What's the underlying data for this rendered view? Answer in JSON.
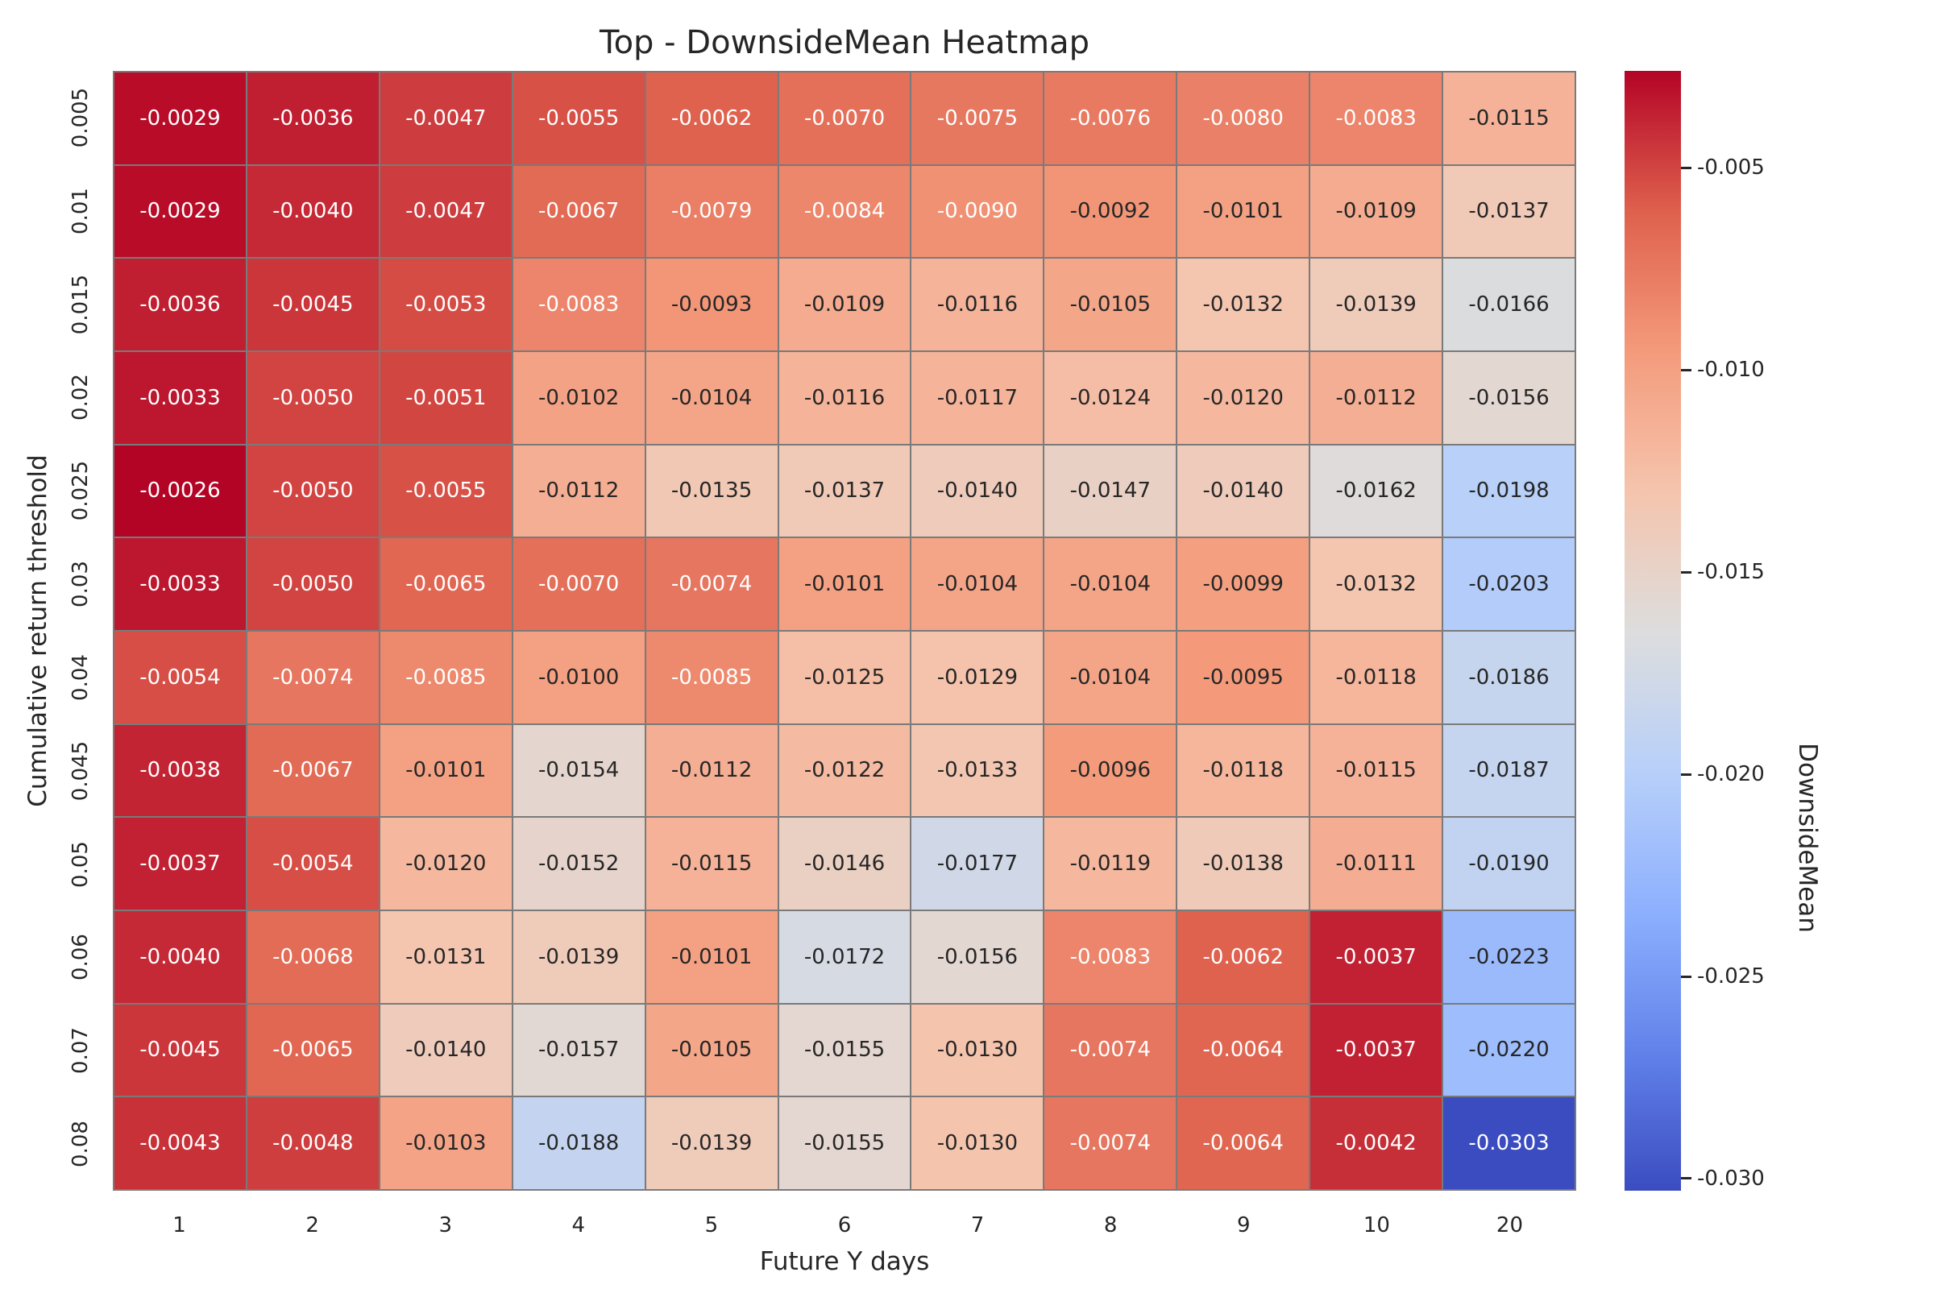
{
  "chart_data": {
    "type": "heatmap",
    "title": "Top - DownsideMean Heatmap",
    "xlabel": "Future Y days",
    "ylabel": "Cumulative return threshold",
    "x_ticks": [
      "1",
      "2",
      "3",
      "4",
      "5",
      "6",
      "7",
      "8",
      "9",
      "10",
      "20"
    ],
    "y_ticks": [
      "0.005",
      "0.01",
      "0.015",
      "0.02",
      "0.025",
      "0.03",
      "0.04",
      "0.045",
      "0.05",
      "0.06",
      "0.07",
      "0.08"
    ],
    "values": [
      [
        -0.0029,
        -0.0036,
        -0.0047,
        -0.0055,
        -0.0062,
        -0.007,
        -0.0075,
        -0.0076,
        -0.008,
        -0.0083,
        -0.0115
      ],
      [
        -0.0029,
        -0.004,
        -0.0047,
        -0.0067,
        -0.0079,
        -0.0084,
        -0.009,
        -0.0092,
        -0.0101,
        -0.0109,
        -0.0137
      ],
      [
        -0.0036,
        -0.0045,
        -0.0053,
        -0.0083,
        -0.0093,
        -0.0109,
        -0.0116,
        -0.0105,
        -0.0132,
        -0.0139,
        -0.0166
      ],
      [
        -0.0033,
        -0.005,
        -0.0051,
        -0.0102,
        -0.0104,
        -0.0116,
        -0.0117,
        -0.0124,
        -0.012,
        -0.0112,
        -0.0156
      ],
      [
        -0.0026,
        -0.005,
        -0.0055,
        -0.0112,
        -0.0135,
        -0.0137,
        -0.014,
        -0.0147,
        -0.014,
        -0.0162,
        -0.0198
      ],
      [
        -0.0033,
        -0.005,
        -0.0065,
        -0.007,
        -0.0074,
        -0.0101,
        -0.0104,
        -0.0104,
        -0.0099,
        -0.0132,
        -0.0203
      ],
      [
        -0.0054,
        -0.0074,
        -0.0085,
        -0.01,
        -0.0085,
        -0.0125,
        -0.0129,
        -0.0104,
        -0.0095,
        -0.0118,
        -0.0186
      ],
      [
        -0.0038,
        -0.0067,
        -0.0101,
        -0.0154,
        -0.0112,
        -0.0122,
        -0.0133,
        -0.0096,
        -0.0118,
        -0.0115,
        -0.0187
      ],
      [
        -0.0037,
        -0.0054,
        -0.012,
        -0.0152,
        -0.0115,
        -0.0146,
        -0.0177,
        -0.0119,
        -0.0138,
        -0.0111,
        -0.019
      ],
      [
        -0.004,
        -0.0068,
        -0.0131,
        -0.0139,
        -0.0101,
        -0.0172,
        -0.0156,
        -0.0083,
        -0.0062,
        -0.0037,
        -0.0223
      ],
      [
        -0.0045,
        -0.0065,
        -0.014,
        -0.0157,
        -0.0105,
        -0.0155,
        -0.013,
        -0.0074,
        -0.0064,
        -0.0037,
        -0.022
      ],
      [
        -0.0043,
        -0.0048,
        -0.0103,
        -0.0188,
        -0.0139,
        -0.0155,
        -0.013,
        -0.0074,
        -0.0064,
        -0.0042,
        -0.0303
      ]
    ],
    "vmin": -0.0303,
    "vmax": -0.0026,
    "value_format_decimals": 4,
    "colormap": "coolwarm",
    "colormap_stops": [
      [
        59,
        76,
        192
      ],
      [
        98,
        130,
        234
      ],
      [
        141,
        176,
        254
      ],
      [
        184,
        208,
        249
      ],
      [
        221,
        221,
        221
      ],
      [
        245,
        196,
        173
      ],
      [
        244,
        154,
        123
      ],
      [
        222,
        96,
        77
      ],
      [
        180,
        4,
        38
      ]
    ],
    "colorbar": {
      "label": "DownsideMean",
      "ticks": [
        -0.005,
        -0.01,
        -0.015,
        -0.02,
        -0.025,
        -0.03
      ],
      "tick_labels": [
        "-0.005",
        "-0.010",
        "-0.015",
        "-0.020",
        "-0.025",
        "-0.030"
      ]
    },
    "colors": {
      "grid_line": "#7a7a7a",
      "text_dark": "#262626",
      "text_light": "#ffffff",
      "background": "#ffffff"
    },
    "legend_position": "right",
    "grid": false
  }
}
